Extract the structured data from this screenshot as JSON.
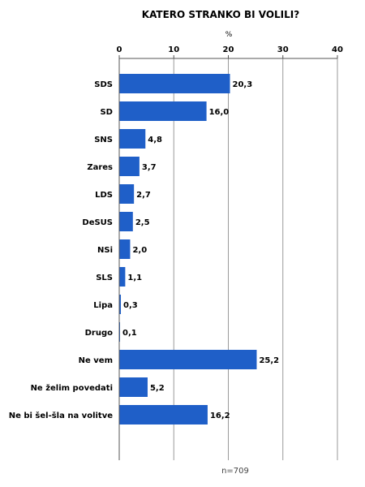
{
  "chart_data": {
    "type": "bar",
    "orientation": "horizontal",
    "title": "KATERO STRANKO BI VOLILI?",
    "unit_label": "%",
    "categories": [
      "SDS",
      "SD",
      "SNS",
      "Zares",
      "LDS",
      "DeSUS",
      "NSi",
      "SLS",
      "Lipa",
      "Drugo",
      "Ne vem",
      "Ne želim povedati",
      "Ne bi šel-šla na volitve"
    ],
    "values": [
      20.3,
      16.0,
      4.8,
      3.7,
      2.7,
      2.5,
      2.0,
      1.1,
      0.3,
      0.1,
      25.2,
      5.2,
      16.2
    ],
    "value_labels": [
      "20,3",
      "16,0",
      "4,8",
      "3,7",
      "2,7",
      "2,5",
      "2,0",
      "1,1",
      "0,3",
      "0,1",
      "25,2",
      "5,2",
      "16,2"
    ],
    "x_ticks": [
      0,
      10,
      20,
      30,
      40
    ],
    "xlim": [
      0,
      40
    ],
    "axis_position": "top",
    "grid": true,
    "bar_color": "#1f5fc8",
    "footnote": "n=709"
  }
}
